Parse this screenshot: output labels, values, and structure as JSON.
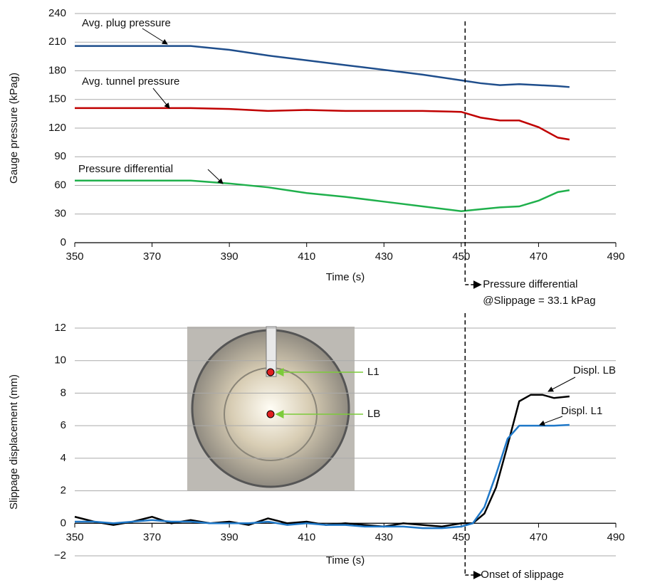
{
  "chart_data": [
    {
      "type": "line",
      "x_label": "Time (s)",
      "y_label": "Gauge pressure (kPag)",
      "x": [
        350,
        360,
        370,
        380,
        390,
        400,
        410,
        420,
        430,
        440,
        450,
        455,
        460,
        465,
        470,
        475,
        478
      ],
      "series": [
        {
          "name": "Avg. plug pressure",
          "color": "#1f4e8c",
          "values": [
            206,
            206,
            206,
            206,
            202,
            196,
            191,
            186,
            181,
            176,
            170,
            167,
            165,
            166,
            165,
            164,
            163
          ]
        },
        {
          "name": "Avg. tunnel pressure",
          "color": "#c00000",
          "values": [
            141,
            141,
            141,
            141,
            140,
            138,
            139,
            138,
            138,
            138,
            137,
            131,
            128,
            128,
            121,
            110,
            108
          ]
        },
        {
          "name": "Pressure differential",
          "color": "#1fb04c",
          "values": [
            65,
            65,
            65,
            65,
            62,
            58,
            52,
            48,
            43,
            38,
            33,
            35,
            37,
            38,
            44,
            53,
            55
          ]
        }
      ],
      "xlim": [
        350,
        490
      ],
      "xticks": [
        350,
        370,
        390,
        410,
        430,
        450,
        470,
        490
      ],
      "ylim": [
        0,
        240
      ],
      "yticks": [
        0,
        30,
        60,
        90,
        120,
        150,
        180,
        210,
        240
      ],
      "grid": true,
      "event_x": 451,
      "annotation": [
        "Pressure differential",
        "@Slippage = 33.1 kPag"
      ]
    },
    {
      "type": "line",
      "x_label": "Time (s)",
      "y_label": "Slippage displacement (mm)",
      "x": [
        350,
        355,
        360,
        365,
        370,
        375,
        380,
        385,
        390,
        395,
        400,
        405,
        410,
        415,
        420,
        425,
        430,
        435,
        440,
        445,
        450,
        453,
        456,
        459,
        462,
        465,
        468,
        471,
        474,
        478
      ],
      "series": [
        {
          "name": "Displ. LB",
          "color": "#000000",
          "values": [
            0.4,
            0.1,
            -0.1,
            0.1,
            0.4,
            0,
            0.2,
            0,
            0.1,
            -0.1,
            0.3,
            0,
            0.1,
            -0.1,
            0,
            -0.1,
            -0.2,
            0,
            -0.1,
            -0.2,
            0,
            0,
            0.6,
            2.2,
            4.8,
            7.5,
            7.9,
            7.9,
            7.7,
            7.8
          ]
        },
        {
          "name": "Displ. L1",
          "color": "#1f78c8",
          "values": [
            0.1,
            0.1,
            0,
            0.1,
            0.2,
            0.1,
            0.1,
            0,
            0,
            0,
            0.1,
            -0.1,
            0,
            -0.1,
            -0.1,
            -0.2,
            -0.2,
            -0.2,
            -0.3,
            -0.3,
            -0.2,
            0,
            1,
            3,
            5.2,
            6,
            6,
            6,
            6,
            6.05
          ]
        }
      ],
      "xlim": [
        350,
        490
      ],
      "xticks": [
        350,
        370,
        390,
        410,
        430,
        450,
        470,
        490
      ],
      "ylim": [
        -2,
        12
      ],
      "yticks": [
        {
          "value": -2,
          "label": "−2"
        },
        0,
        2,
        4,
        6,
        8,
        10,
        12
      ],
      "grid": true,
      "event_x": 451,
      "annotation": [
        "Onset of slippage"
      ],
      "inset_labels": [
        "L1",
        "LB"
      ]
    }
  ]
}
